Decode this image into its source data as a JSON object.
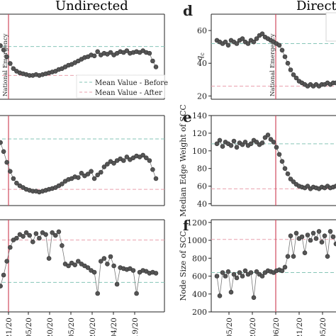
{
  "headers": {
    "left": "Undirected",
    "right": "Directe"
  },
  "chart_data": [
    {
      "id": "a",
      "type": "scatter",
      "vline_label": "National Emergency",
      "mean_before": 0.62,
      "mean_after": 0.28,
      "ylim": [
        0.0,
        1.0
      ],
      "legend": {
        "entries": [
          "Mean Value - Before",
          "Mean Value - After"
        ],
        "placement": "lower-right"
      },
      "values": [
        0.65,
        0.63,
        0.58,
        0.5,
        0.42,
        0.36,
        0.33,
        0.31,
        0.3,
        0.29,
        0.28,
        0.28,
        0.29,
        0.28,
        0.29,
        0.3,
        0.31,
        0.32,
        0.33,
        0.35,
        0.36,
        0.38,
        0.4,
        0.41,
        0.43,
        0.45,
        0.47,
        0.49,
        0.5,
        0.52,
        0.51,
        0.56,
        0.52,
        0.54,
        0.53,
        0.55,
        0.52,
        0.54,
        0.56,
        0.55,
        0.57,
        0.54,
        0.55,
        0.56,
        0.55,
        0.57,
        0.55,
        0.54,
        0.45,
        0.38
      ]
    },
    {
      "id": "b",
      "type": "scatter",
      "vline_label": "",
      "mean_before": 0.74,
      "mean_after": 0.18,
      "ylim": [
        0.0,
        1.0
      ],
      "values": [
        0.72,
        0.7,
        0.6,
        0.48,
        0.38,
        0.3,
        0.25,
        0.22,
        0.2,
        0.18,
        0.17,
        0.16,
        0.16,
        0.15,
        0.16,
        0.17,
        0.18,
        0.19,
        0.2,
        0.22,
        0.24,
        0.27,
        0.29,
        0.3,
        0.32,
        0.31,
        0.36,
        0.33,
        0.35,
        0.38,
        0.3,
        0.34,
        0.37,
        0.43,
        0.46,
        0.49,
        0.47,
        0.5,
        0.52,
        0.5,
        0.54,
        0.51,
        0.53,
        0.55,
        0.54,
        0.56,
        0.53,
        0.5,
        0.4,
        0.3
      ]
    },
    {
      "id": "c",
      "type": "scatter",
      "vline_label": "",
      "mean_before": 0.32,
      "mean_after": 0.78,
      "ylim": [
        0.0,
        1.0
      ],
      "x_ticks": [
        "03/21/20",
        "04/05/20",
        "04/20/20",
        "05/05/20",
        "05/20/20",
        "06/04/20",
        "06/19/20"
      ],
      "values": [
        0.3,
        0.28,
        0.4,
        0.55,
        0.7,
        0.78,
        0.8,
        0.84,
        0.82,
        0.86,
        0.83,
        0.76,
        0.85,
        0.8,
        0.86,
        0.84,
        0.58,
        0.86,
        0.83,
        0.87,
        0.72,
        0.52,
        0.5,
        0.53,
        0.51,
        0.55,
        0.52,
        0.5,
        0.48,
        0.45,
        0.43,
        0.2,
        0.55,
        0.58,
        0.52,
        0.6,
        0.5,
        0.3,
        0.48,
        0.47,
        0.46,
        0.47,
        0.45,
        0.2,
        0.43,
        0.45,
        0.44,
        0.42,
        0.43,
        0.42
      ]
    },
    {
      "id": "d",
      "type": "scatter",
      "ylabel": "q_c",
      "ylim": [
        18,
        70
      ],
      "yticks": [
        20,
        40,
        60
      ],
      "vline_label": "National Emergency",
      "mean_before": 52,
      "mean_after": 26,
      "values": [
        54,
        53,
        52,
        53,
        51,
        54,
        53,
        52,
        54,
        55,
        53,
        52,
        54,
        53,
        55,
        57,
        58,
        56,
        55,
        54,
        53,
        52,
        51,
        48,
        44,
        40,
        36,
        33,
        31,
        29,
        28,
        27,
        26,
        27,
        26,
        27,
        26,
        27,
        27,
        28,
        27,
        28,
        28,
        27,
        28,
        28,
        29
      ]
    },
    {
      "id": "e",
      "type": "scatter",
      "ylabel": "Median Edge Weight of SCC",
      "ylim": [
        38,
        140
      ],
      "yticks": [
        40,
        60,
        80,
        100,
        120,
        140
      ],
      "vline_label": "",
      "mean_before": 108,
      "mean_after": 57,
      "values": [
        108,
        112,
        105,
        110,
        108,
        106,
        111,
        104,
        109,
        107,
        110,
        106,
        108,
        112,
        110,
        107,
        109,
        115,
        118,
        113,
        110,
        104,
        96,
        88,
        80,
        74,
        68,
        65,
        62,
        60,
        59,
        58,
        60,
        57,
        59,
        58,
        57,
        59,
        58,
        60,
        58,
        59,
        60,
        58,
        61,
        60,
        61
      ]
    },
    {
      "id": "f",
      "type": "scatter",
      "ylabel": "Node Size of SCC",
      "ylim": [
        200,
        1230
      ],
      "yticks": [
        200,
        400,
        600,
        800,
        1000,
        1200
      ],
      "vline_label": "",
      "mean_before": 640,
      "mean_after": 1010,
      "x_ticks": [
        "02/05/20",
        "02/20/20",
        "03/06/20",
        "03/21/20",
        "04/05/20",
        "04/20/20"
      ],
      "values": [
        600,
        380,
        640,
        600,
        650,
        420,
        620,
        580,
        640,
        600,
        660,
        620,
        640,
        360,
        650,
        620,
        600,
        640,
        660,
        650,
        640,
        660,
        670,
        660,
        700,
        820,
        1050,
        820,
        1080,
        1020,
        1040,
        860,
        1060,
        1000,
        1080,
        1020,
        1100,
        980,
        1050,
        820,
        1100,
        1040,
        960,
        1120,
        1000,
        880,
        900
      ]
    }
  ],
  "panel_letters": [
    "d",
    "e",
    "f"
  ]
}
